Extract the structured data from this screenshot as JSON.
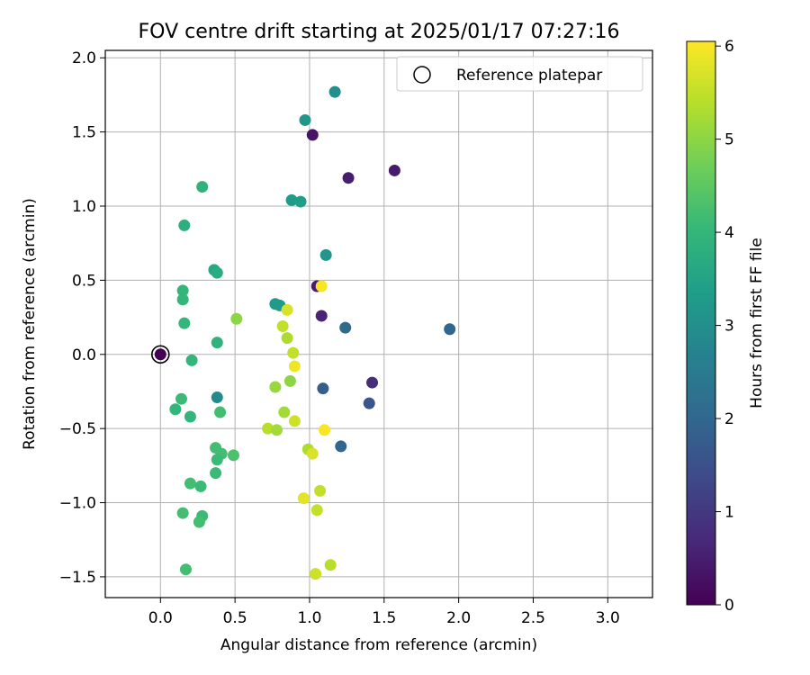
{
  "chart_data": {
    "type": "scatter",
    "title": "FOV centre drift starting at 2025/01/17 07:27:16",
    "xlabel": "Angular distance from reference (arcmin)",
    "ylabel": "Rotation from reference (arcmin)",
    "xlim": [
      -0.37,
      3.3
    ],
    "ylim": [
      -1.64,
      2.05
    ],
    "xticks": [
      "0.0",
      "0.5",
      "1.0",
      "1.5",
      "2.0",
      "2.5",
      "3.0"
    ],
    "yticks": [
      "−1.5",
      "−1.0",
      "−0.5",
      "0.0",
      "0.5",
      "1.0",
      "1.5",
      "2.0"
    ],
    "grid": true,
    "legend": {
      "placement": "top-right",
      "entries": [
        "Reference platepar"
      ]
    },
    "colorbar": {
      "label": "Hours from first FF file",
      "colormap": "viridis",
      "range": [
        0,
        6.05
      ],
      "ticks": [
        "0",
        "1",
        "2",
        "3",
        "4",
        "5",
        "6"
      ]
    },
    "reference_point": {
      "x": 0.0,
      "y": 0.0
    },
    "points": [
      {
        "x": 0.0,
        "y": 0.0,
        "t": 0.0
      },
      {
        "x": 1.02,
        "y": 1.48,
        "t": 0.35
      },
      {
        "x": 1.57,
        "y": 1.24,
        "t": 0.45
      },
      {
        "x": 1.26,
        "y": 1.19,
        "t": 0.5
      },
      {
        "x": 1.05,
        "y": 0.46,
        "t": 0.5
      },
      {
        "x": 1.08,
        "y": 0.26,
        "t": 0.6
      },
      {
        "x": 1.42,
        "y": -0.19,
        "t": 0.8
      },
      {
        "x": 1.4,
        "y": -0.33,
        "t": 1.6
      },
      {
        "x": 1.09,
        "y": -0.23,
        "t": 1.8
      },
      {
        "x": 1.94,
        "y": 0.17,
        "t": 2.0
      },
      {
        "x": 1.24,
        "y": 0.18,
        "t": 2.1
      },
      {
        "x": 1.21,
        "y": -0.62,
        "t": 2.0
      },
      {
        "x": 0.38,
        "y": -0.29,
        "t": 2.9
      },
      {
        "x": 1.17,
        "y": 1.77,
        "t": 3.0
      },
      {
        "x": 0.97,
        "y": 1.58,
        "t": 3.2
      },
      {
        "x": 1.11,
        "y": 0.67,
        "t": 3.2
      },
      {
        "x": 0.88,
        "y": 1.04,
        "t": 3.3
      },
      {
        "x": 0.94,
        "y": 1.03,
        "t": 3.4
      },
      {
        "x": 0.77,
        "y": 0.34,
        "t": 3.3
      },
      {
        "x": 0.8,
        "y": 0.33,
        "t": 3.3
      },
      {
        "x": 0.36,
        "y": 0.57,
        "t": 3.6
      },
      {
        "x": 0.38,
        "y": 0.55,
        "t": 3.7
      },
      {
        "x": 0.28,
        "y": 1.13,
        "t": 3.9
      },
      {
        "x": 0.16,
        "y": 0.87,
        "t": 3.8
      },
      {
        "x": 0.15,
        "y": 0.43,
        "t": 4.0
      },
      {
        "x": 0.15,
        "y": 0.37,
        "t": 4.0
      },
      {
        "x": 0.16,
        "y": 0.21,
        "t": 4.0
      },
      {
        "x": 0.38,
        "y": 0.08,
        "t": 3.9
      },
      {
        "x": 0.21,
        "y": -0.04,
        "t": 4.0
      },
      {
        "x": 0.14,
        "y": -0.3,
        "t": 4.1
      },
      {
        "x": 0.1,
        "y": -0.37,
        "t": 4.0
      },
      {
        "x": 0.2,
        "y": -0.42,
        "t": 4.0
      },
      {
        "x": 0.4,
        "y": -0.39,
        "t": 4.2
      },
      {
        "x": 0.37,
        "y": -0.63,
        "t": 4.2
      },
      {
        "x": 0.41,
        "y": -0.67,
        "t": 4.2
      },
      {
        "x": 0.38,
        "y": -0.71,
        "t": 4.1
      },
      {
        "x": 0.49,
        "y": -0.68,
        "t": 4.3
      },
      {
        "x": 0.37,
        "y": -0.8,
        "t": 4.1
      },
      {
        "x": 0.2,
        "y": -0.87,
        "t": 4.2
      },
      {
        "x": 0.27,
        "y": -0.89,
        "t": 4.1
      },
      {
        "x": 0.15,
        "y": -1.07,
        "t": 4.2
      },
      {
        "x": 0.28,
        "y": -1.09,
        "t": 4.1
      },
      {
        "x": 0.26,
        "y": -1.13,
        "t": 4.2
      },
      {
        "x": 0.17,
        "y": -1.45,
        "t": 4.2
      },
      {
        "x": 0.51,
        "y": 0.24,
        "t": 5.0
      },
      {
        "x": 0.77,
        "y": -0.22,
        "t": 5.1
      },
      {
        "x": 0.87,
        "y": -0.18,
        "t": 5.0
      },
      {
        "x": 0.85,
        "y": 0.11,
        "t": 5.3
      },
      {
        "x": 0.89,
        "y": 0.01,
        "t": 5.5
      },
      {
        "x": 0.82,
        "y": 0.19,
        "t": 5.5
      },
      {
        "x": 0.85,
        "y": 0.3,
        "t": 5.7
      },
      {
        "x": 0.83,
        "y": -0.39,
        "t": 5.2
      },
      {
        "x": 0.72,
        "y": -0.5,
        "t": 5.4
      },
      {
        "x": 0.78,
        "y": -0.51,
        "t": 5.2
      },
      {
        "x": 0.9,
        "y": -0.45,
        "t": 5.6
      },
      {
        "x": 0.9,
        "y": -0.08,
        "t": 5.9
      },
      {
        "x": 0.99,
        "y": -0.64,
        "t": 5.3
      },
      {
        "x": 1.02,
        "y": -0.67,
        "t": 5.7
      },
      {
        "x": 1.07,
        "y": -0.92,
        "t": 5.5
      },
      {
        "x": 0.96,
        "y": -0.97,
        "t": 5.8
      },
      {
        "x": 1.05,
        "y": -1.05,
        "t": 5.5
      },
      {
        "x": 1.14,
        "y": -1.42,
        "t": 5.4
      },
      {
        "x": 1.04,
        "y": -1.48,
        "t": 5.6
      },
      {
        "x": 1.1,
        "y": -0.51,
        "t": 6.0
      },
      {
        "x": 1.08,
        "y": 0.46,
        "t": 6.0
      }
    ]
  }
}
